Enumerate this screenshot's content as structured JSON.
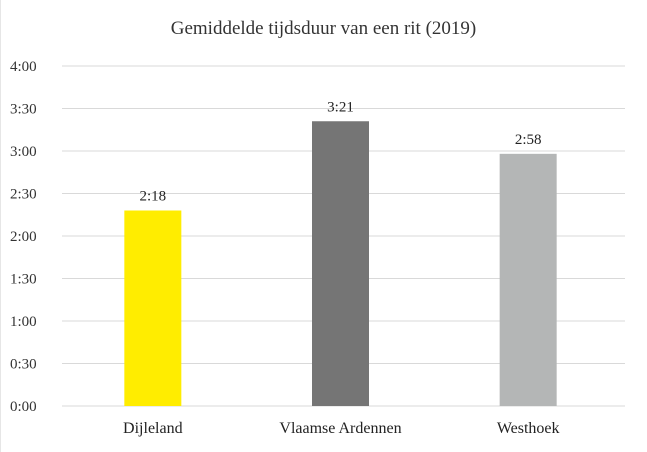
{
  "chart_data": {
    "type": "bar",
    "title": "Gemiddelde tijdsduur van een rit (2019)",
    "xlabel": "",
    "ylabel": "",
    "categories": [
      "Dijleland",
      "Vlaamse Ardennen",
      "Westhoek"
    ],
    "values": [
      138,
      201,
      178
    ],
    "value_unit": "minutes",
    "data_labels": [
      "2:18",
      "3:21",
      "2:58"
    ],
    "bar_colors": [
      "#ffed00",
      "#757575",
      "#b4b6b6"
    ],
    "ylim": [
      0,
      240
    ],
    "y_ticks": [
      {
        "value": 0,
        "label": "0:00"
      },
      {
        "value": 30,
        "label": "0:30"
      },
      {
        "value": 60,
        "label": "1:00"
      },
      {
        "value": 90,
        "label": "1:30"
      },
      {
        "value": 120,
        "label": "2:00"
      },
      {
        "value": 150,
        "label": "2:30"
      },
      {
        "value": 180,
        "label": "3:00"
      },
      {
        "value": 210,
        "label": "3:30"
      },
      {
        "value": 240,
        "label": "4:00"
      }
    ],
    "grid": true,
    "gridline_color": "#d9d9d9",
    "legend": "none"
  }
}
